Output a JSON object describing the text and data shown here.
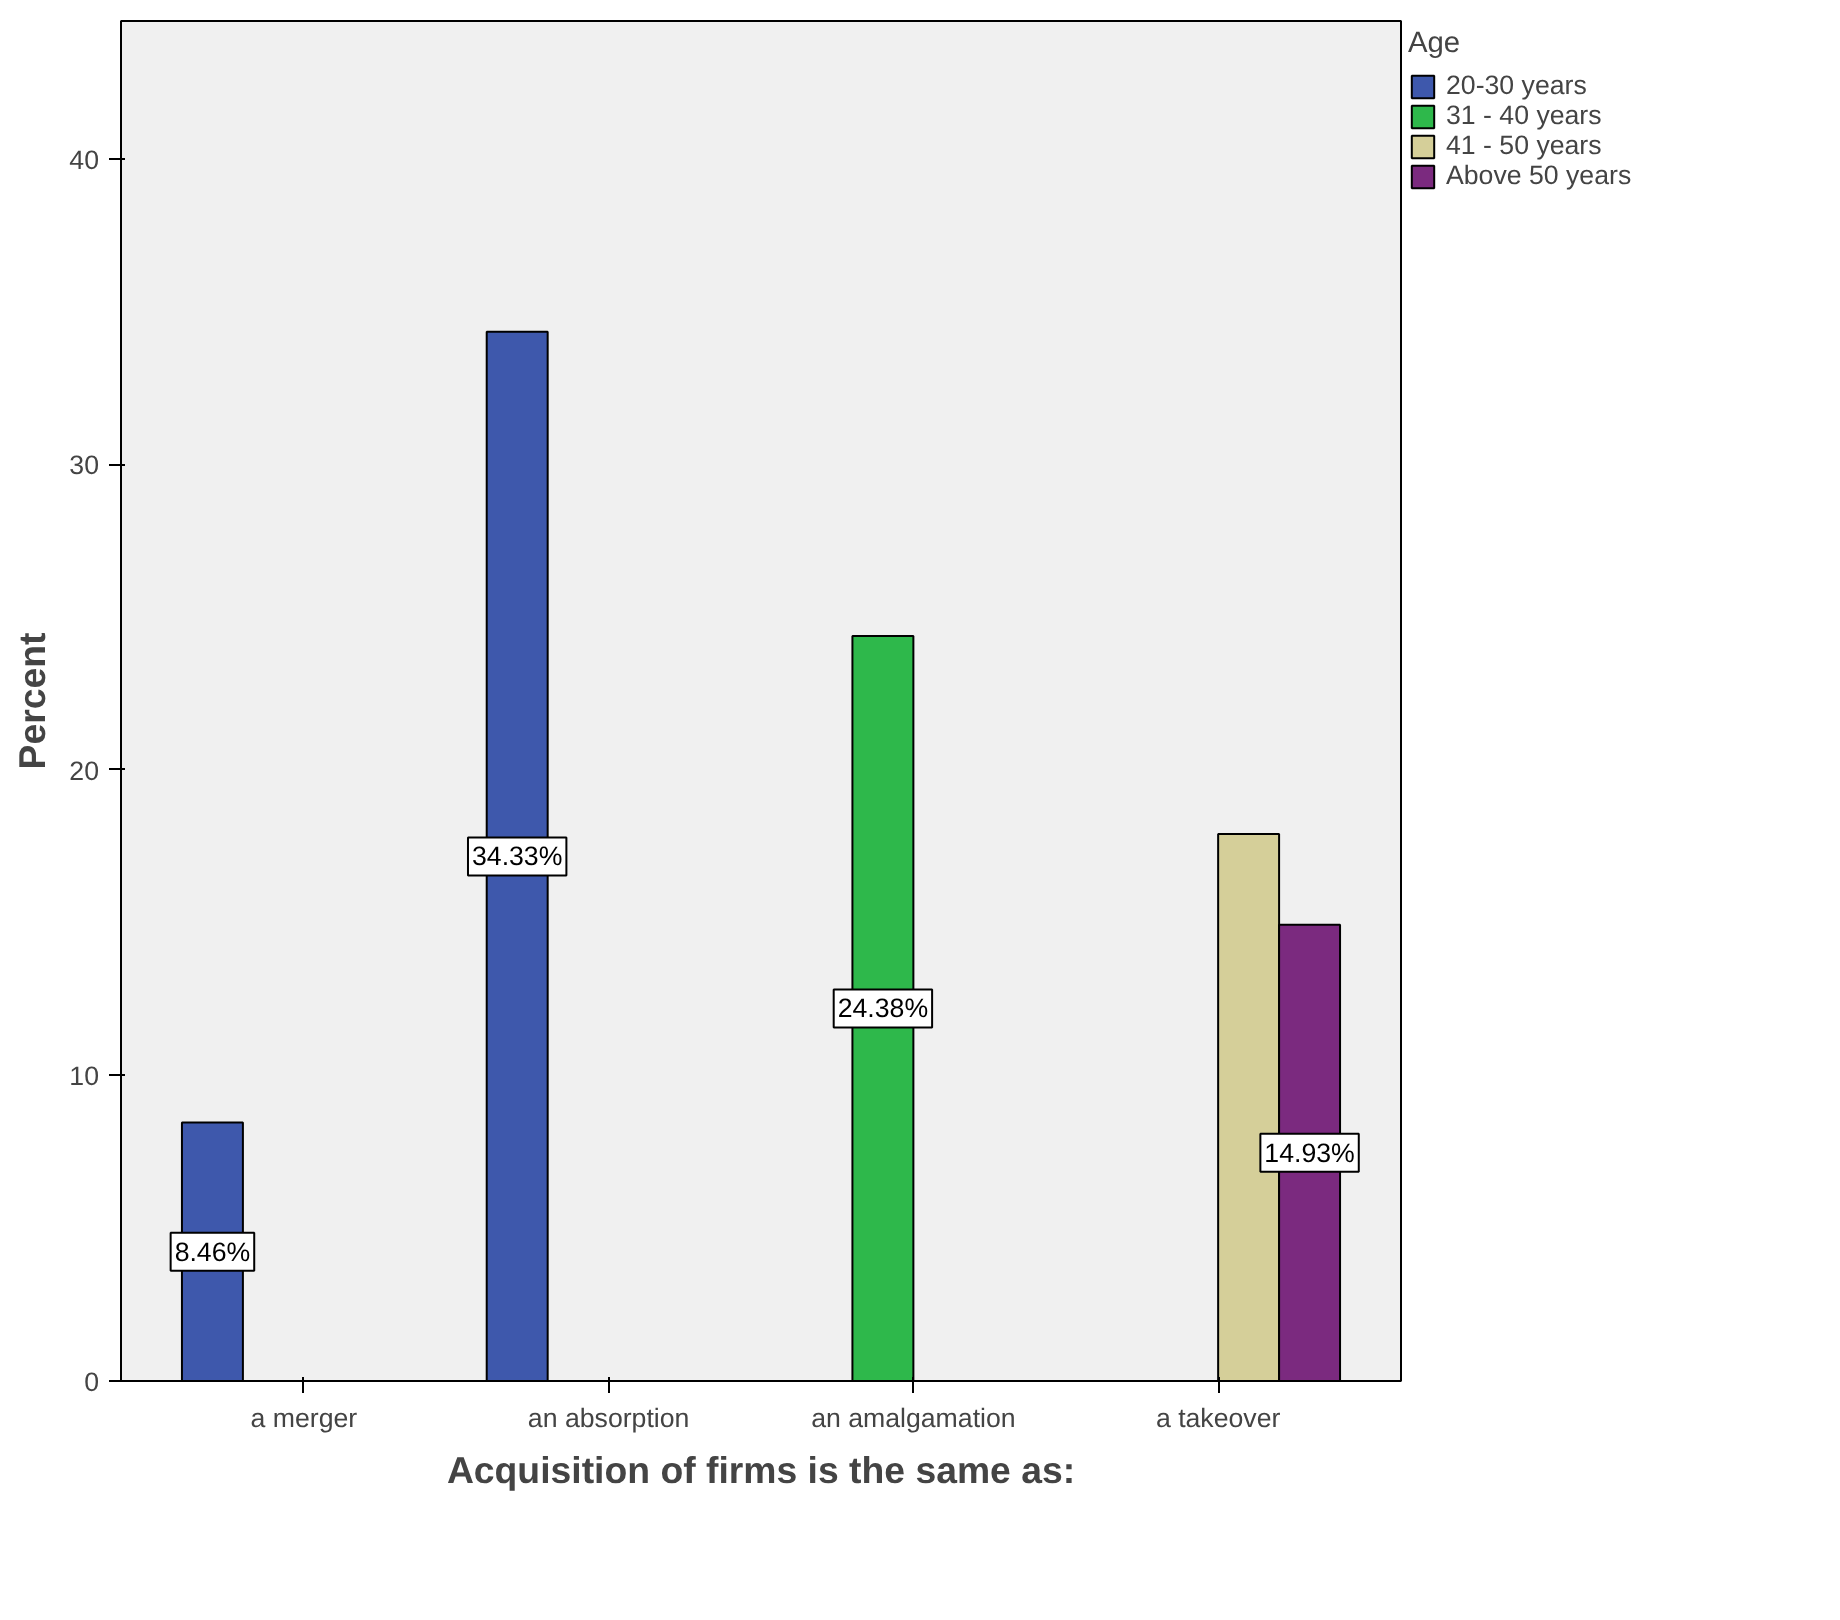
{
  "chart_data": {
    "type": "bar",
    "xlabel": "Acquisition of firms is the same as:",
    "ylabel": "Percent",
    "legend_title": "Age",
    "legend": "top right",
    "categories": [
      "a merger",
      "an absorption",
      "an amalgamation",
      "a takeover"
    ],
    "ylim": [
      0,
      44.5
    ],
    "yticks": [
      0,
      10,
      20,
      30,
      40
    ],
    "grid": false,
    "series": [
      {
        "name": "20-30 years",
        "color": "#3e58ac",
        "values": [
          8.46,
          34.33,
          null,
          null
        ],
        "value_labels": [
          "8.46%",
          "34.33%",
          null,
          null
        ]
      },
      {
        "name": "31 - 40 years",
        "color": "#2eb84b",
        "values": [
          null,
          null,
          24.38,
          null
        ],
        "value_labels": [
          null,
          null,
          "24.38%",
          null
        ]
      },
      {
        "name": "41 - 50 years",
        "color": "#d5cf99",
        "values": [
          null,
          null,
          null,
          17.9
        ],
        "value_labels": [
          null,
          null,
          null,
          null
        ]
      },
      {
        "name": "Above 50 years",
        "color": "#7b2a7f",
        "values": [
          null,
          null,
          null,
          14.93
        ],
        "value_labels": [
          null,
          null,
          null,
          "14.93%"
        ]
      }
    ]
  }
}
